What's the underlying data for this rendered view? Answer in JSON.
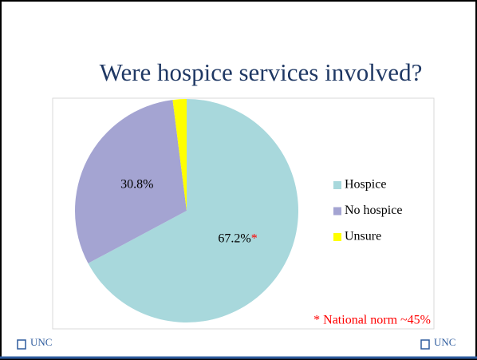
{
  "chart_data": {
    "type": "pie",
    "title": "Were hospice services involved?",
    "categories": [
      "Hospice",
      "No hospice",
      "Unsure"
    ],
    "values": [
      67.2,
      30.8,
      2.0
    ],
    "value_labels": [
      "67.2%",
      "30.8%",
      null
    ],
    "colors": [
      "#a8d8dc",
      "#a4a4d2",
      "#ffff00"
    ],
    "label_marker": "*",
    "annotation": "* National norm ~45%",
    "legend": "right"
  },
  "footer": {
    "logos": [
      "UNC",
      "UNC"
    ]
  }
}
